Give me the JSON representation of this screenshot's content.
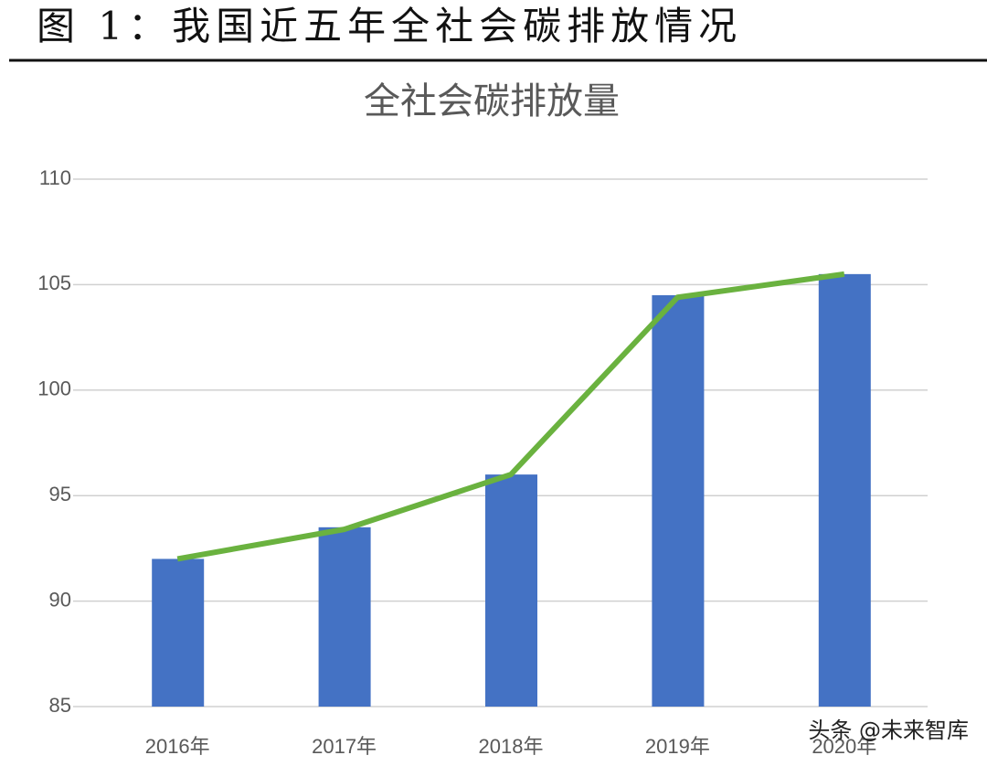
{
  "heading": "图 1：我国近五年全社会碳排放情况",
  "chart_data": {
    "type": "bar-line",
    "title": "全社会碳排放量",
    "categories": [
      "2016年",
      "2017年",
      "2018年",
      "2019年",
      "2020年"
    ],
    "series": [
      {
        "type": "bar",
        "color": "#4472c4",
        "values": [
          92,
          93.5,
          96,
          104.5,
          105.5
        ]
      },
      {
        "type": "line",
        "color": "#6ab23f",
        "values": [
          92,
          93.4,
          96,
          104.4,
          105.5
        ]
      }
    ],
    "ylim": [
      85,
      110
    ],
    "yticks": [
      85,
      90,
      95,
      100,
      105,
      110
    ],
    "grid": true
  },
  "watermark": "头条 @未来智库"
}
